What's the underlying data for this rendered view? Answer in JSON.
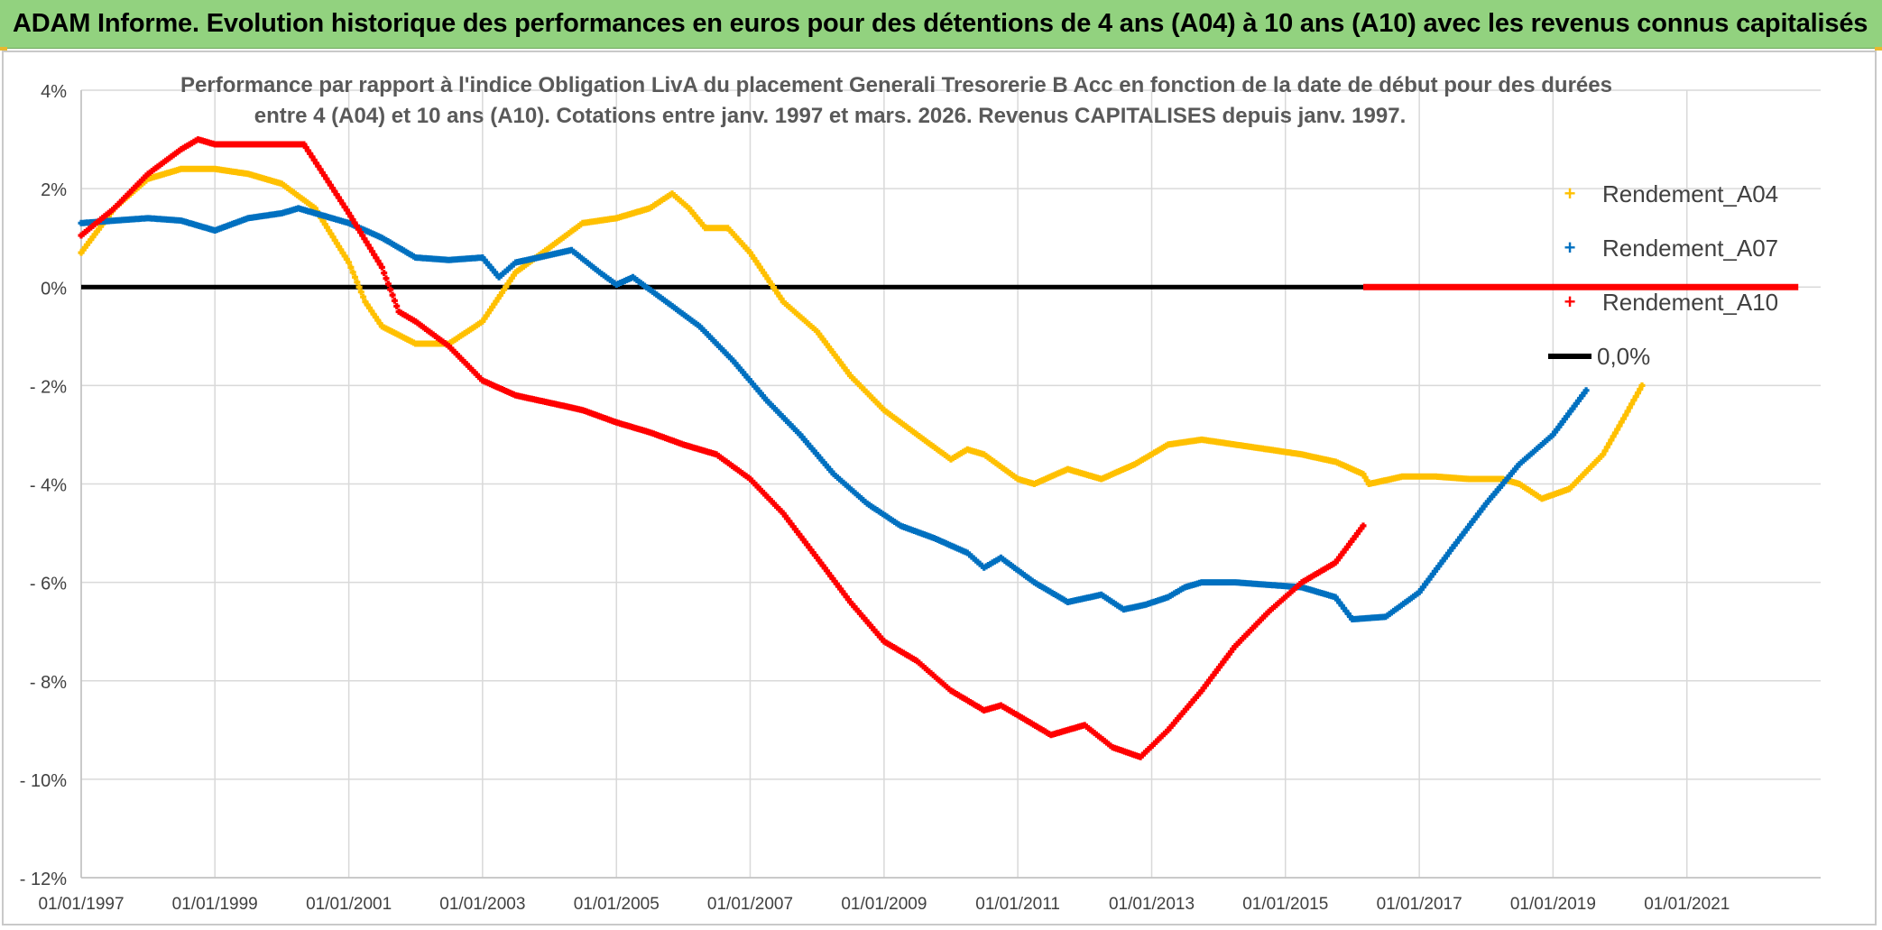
{
  "banner": {
    "title": "ADAM Informe. Evolution historique des performances en euros pour des détentions de 4 ans (A04) à 10 ans (A10) avec les revenus connus capitalisés"
  },
  "colors": {
    "banner_bg": "#92d27f",
    "A04": "#ffc000",
    "A07": "#0070c0",
    "A10": "#ff0000",
    "zero_line": "#000000",
    "grid": "#d9d9d9",
    "axis_text": "#404040"
  },
  "chart_data": {
    "type": "scatter",
    "title_lines": [
      "Performance par rapport à l'indice Obligation LivA  du placement Generali Tresorerie B Acc en fonction de la date de début pour des durées",
      "entre 4 (A04) et 10 ans (A10). Cotations entre janv. 1997 et mars. 2026. Revenus CAPITALISES depuis janv. 1997."
    ],
    "x_axis": {
      "type": "date",
      "min": "1997-01-01",
      "max": "2023-01-01",
      "tick_labels": [
        "01/01/1997",
        "01/01/1999",
        "01/01/2001",
        "01/01/2003",
        "01/01/2005",
        "01/01/2007",
        "01/01/2009",
        "01/01/2011",
        "01/01/2013",
        "01/01/2015",
        "01/01/2017",
        "01/01/2019",
        "01/01/2021"
      ]
    },
    "y_axis": {
      "min": -12,
      "max": 4,
      "unit": "%",
      "tick_values": [
        4,
        2,
        0,
        -2,
        -4,
        -6,
        -8,
        -10,
        -12
      ],
      "tick_labels": [
        "4%",
        "2%",
        "0%",
        "- 2%",
        "- 4%",
        "- 6%",
        "- 8%",
        "- 10%",
        "- 12%"
      ]
    },
    "grid": true,
    "legend_position": "right",
    "series": [
      {
        "name": "Rendement_A04",
        "color_key": "A04",
        "marker": "+",
        "points": [
          [
            "1997-01-01",
            0.7
          ],
          [
            "1997-07-01",
            1.6
          ],
          [
            "1998-01-01",
            2.2
          ],
          [
            "1998-07-01",
            2.4
          ],
          [
            "1999-01-01",
            2.4
          ],
          [
            "1999-07-01",
            2.3
          ],
          [
            "2000-01-01",
            2.1
          ],
          [
            "2000-07-01",
            1.6
          ],
          [
            "2001-01-01",
            0.5
          ],
          [
            "2001-04-01",
            -0.3
          ],
          [
            "2001-07-01",
            -0.8
          ],
          [
            "2002-01-01",
            -1.15
          ],
          [
            "2002-07-01",
            -1.15
          ],
          [
            "2003-01-01",
            -0.7
          ],
          [
            "2003-07-01",
            0.3
          ],
          [
            "2004-01-01",
            0.8
          ],
          [
            "2004-07-01",
            1.3
          ],
          [
            "2005-01-01",
            1.4
          ],
          [
            "2005-07-01",
            1.6
          ],
          [
            "2005-11-01",
            1.9
          ],
          [
            "2006-02-01",
            1.6
          ],
          [
            "2006-05-01",
            1.2
          ],
          [
            "2006-09-01",
            1.2
          ],
          [
            "2007-01-01",
            0.7
          ],
          [
            "2007-07-01",
            -0.3
          ],
          [
            "2008-01-01",
            -0.9
          ],
          [
            "2008-07-01",
            -1.8
          ],
          [
            "2009-01-01",
            -2.5
          ],
          [
            "2009-07-01",
            -3.0
          ],
          [
            "2010-01-01",
            -3.5
          ],
          [
            "2010-04-01",
            -3.3
          ],
          [
            "2010-07-01",
            -3.4
          ],
          [
            "2011-01-01",
            -3.9
          ],
          [
            "2011-04-01",
            -4.0
          ],
          [
            "2011-10-01",
            -3.7
          ],
          [
            "2012-04-01",
            -3.9
          ],
          [
            "2012-10-01",
            -3.6
          ],
          [
            "2013-04-01",
            -3.2
          ],
          [
            "2013-10-01",
            -3.1
          ],
          [
            "2014-04-01",
            -3.2
          ],
          [
            "2014-10-01",
            -3.3
          ],
          [
            "2015-04-01",
            -3.4
          ],
          [
            "2015-10-01",
            -3.55
          ],
          [
            "2016-03-01",
            -3.8
          ],
          [
            "2016-04-01",
            -4.0
          ],
          [
            "2016-10-01",
            -3.85
          ],
          [
            "2017-04-01",
            -3.85
          ],
          [
            "2017-10-01",
            -3.9
          ],
          [
            "2018-04-01",
            -3.9
          ],
          [
            "2018-07-01",
            -4.0
          ],
          [
            "2018-11-01",
            -4.3
          ],
          [
            "2019-04-01",
            -4.1
          ],
          [
            "2019-10-01",
            -3.4
          ],
          [
            "2020-02-01",
            -2.6
          ],
          [
            "2020-05-01",
            -2.0
          ]
        ]
      },
      {
        "name": "Rendement_A07",
        "color_key": "A07",
        "marker": "+",
        "points": [
          [
            "1997-01-01",
            1.3
          ],
          [
            "1997-07-01",
            1.35
          ],
          [
            "1998-01-01",
            1.4
          ],
          [
            "1998-07-01",
            1.35
          ],
          [
            "1999-01-01",
            1.15
          ],
          [
            "1999-07-01",
            1.4
          ],
          [
            "2000-01-01",
            1.5
          ],
          [
            "2000-04-01",
            1.6
          ],
          [
            "2000-10-01",
            1.4
          ],
          [
            "2001-01-01",
            1.3
          ],
          [
            "2001-07-01",
            1.0
          ],
          [
            "2002-01-01",
            0.6
          ],
          [
            "2002-07-01",
            0.55
          ],
          [
            "2003-01-01",
            0.6
          ],
          [
            "2003-04-01",
            0.2
          ],
          [
            "2003-07-01",
            0.5
          ],
          [
            "2004-01-01",
            0.65
          ],
          [
            "2004-05-01",
            0.75
          ],
          [
            "2004-10-01",
            0.3
          ],
          [
            "2005-01-01",
            0.05
          ],
          [
            "2005-04-01",
            0.2
          ],
          [
            "2005-10-01",
            -0.3
          ],
          [
            "2006-04-01",
            -0.8
          ],
          [
            "2006-10-01",
            -1.5
          ],
          [
            "2007-04-01",
            -2.3
          ],
          [
            "2007-10-01",
            -3.0
          ],
          [
            "2008-04-01",
            -3.8
          ],
          [
            "2008-10-01",
            -4.4
          ],
          [
            "2009-04-01",
            -4.85
          ],
          [
            "2009-10-01",
            -5.1
          ],
          [
            "2010-04-01",
            -5.4
          ],
          [
            "2010-07-01",
            -5.7
          ],
          [
            "2010-10-01",
            -5.5
          ],
          [
            "2011-04-01",
            -6.0
          ],
          [
            "2011-10-01",
            -6.4
          ],
          [
            "2012-04-01",
            -6.25
          ],
          [
            "2012-08-01",
            -6.55
          ],
          [
            "2012-12-01",
            -6.45
          ],
          [
            "2013-04-01",
            -6.3
          ],
          [
            "2013-07-01",
            -6.1
          ],
          [
            "2013-10-01",
            -6.0
          ],
          [
            "2014-04-01",
            -6.0
          ],
          [
            "2014-10-01",
            -6.05
          ],
          [
            "2015-04-01",
            -6.1
          ],
          [
            "2015-10-01",
            -6.3
          ],
          [
            "2016-01-01",
            -6.75
          ],
          [
            "2016-07-01",
            -6.7
          ],
          [
            "2017-01-01",
            -6.2
          ],
          [
            "2017-07-01",
            -5.3
          ],
          [
            "2018-01-01",
            -4.4
          ],
          [
            "2018-07-01",
            -3.6
          ],
          [
            "2019-01-01",
            -3.0
          ],
          [
            "2019-07-01",
            -2.1
          ]
        ]
      },
      {
        "name": "Rendement_A10",
        "color_key": "A10",
        "marker": "+",
        "points": [
          [
            "1997-01-01",
            1.05
          ],
          [
            "1997-07-01",
            1.6
          ],
          [
            "1998-01-01",
            2.3
          ],
          [
            "1998-07-01",
            2.8
          ],
          [
            "1998-10-01",
            3.0
          ],
          [
            "1999-01-01",
            2.9
          ],
          [
            "1999-07-01",
            2.9
          ],
          [
            "2000-05-01",
            2.9
          ],
          [
            "2000-09-01",
            2.2
          ],
          [
            "2001-01-01",
            1.5
          ],
          [
            "2001-07-01",
            0.4
          ],
          [
            "2001-10-01",
            -0.5
          ],
          [
            "2002-01-01",
            -0.7
          ],
          [
            "2002-07-01",
            -1.2
          ],
          [
            "2003-01-01",
            -1.9
          ],
          [
            "2003-07-01",
            -2.2
          ],
          [
            "2004-01-01",
            -2.35
          ],
          [
            "2004-07-01",
            -2.5
          ],
          [
            "2005-01-01",
            -2.75
          ],
          [
            "2005-07-01",
            -2.95
          ],
          [
            "2006-01-01",
            -3.2
          ],
          [
            "2006-07-01",
            -3.4
          ],
          [
            "2007-01-01",
            -3.9
          ],
          [
            "2007-07-01",
            -4.6
          ],
          [
            "2008-01-01",
            -5.5
          ],
          [
            "2008-07-01",
            -6.4
          ],
          [
            "2009-01-01",
            -7.2
          ],
          [
            "2009-07-01",
            -7.6
          ],
          [
            "2010-01-01",
            -8.2
          ],
          [
            "2010-07-01",
            -8.6
          ],
          [
            "2010-10-01",
            -8.5
          ],
          [
            "2011-01-01",
            -8.7
          ],
          [
            "2011-07-01",
            -9.1
          ],
          [
            "2012-01-01",
            -8.9
          ],
          [
            "2012-06-01",
            -9.35
          ],
          [
            "2012-11-01",
            -9.55
          ],
          [
            "2013-04-01",
            -9.0
          ],
          [
            "2013-10-01",
            -8.2
          ],
          [
            "2014-04-01",
            -7.3
          ],
          [
            "2014-10-01",
            -6.6
          ],
          [
            "2015-04-01",
            -6.0
          ],
          [
            "2015-10-01",
            -5.6
          ],
          [
            "2016-03-01",
            -4.85
          ]
        ],
        "zero_segment": [
          [
            "2016-03-01",
            0.0
          ],
          [
            "2022-09-01",
            0.0
          ]
        ]
      },
      {
        "name": "0,0%",
        "color_key": "zero_line",
        "marker": "line",
        "points": [
          [
            "1997-01-01",
            0.0
          ],
          [
            "2016-03-01",
            0.0
          ]
        ]
      }
    ]
  }
}
